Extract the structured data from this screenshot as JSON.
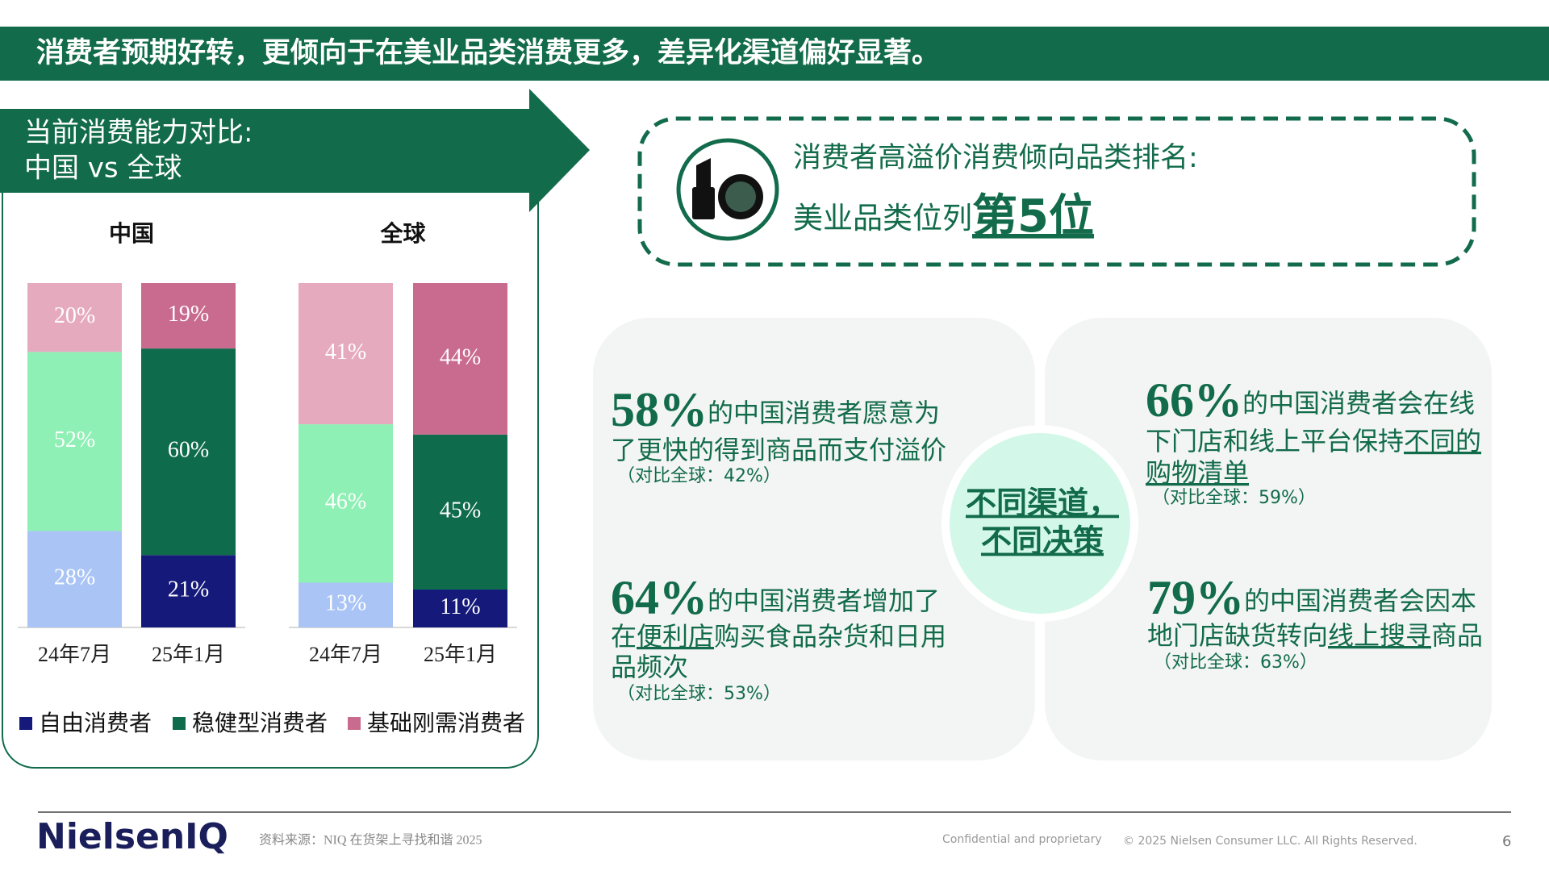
{
  "header": {
    "title": "消费者预期好转，更倾向于在美业品类消费更多，差异化渠道偏好显著。"
  },
  "panel": {
    "title_lines": [
      "当前消费能力对比:",
      "中国 vs 全球"
    ]
  },
  "chart_data": [
    {
      "type": "bar",
      "stacked": true,
      "title": "中国",
      "categories": [
        "24年7月",
        "25年1月"
      ],
      "ylim": [
        0,
        100
      ],
      "series": [
        {
          "name": "自由消费者",
          "colors": [
            "#a9c4f5",
            "#14197a"
          ],
          "values": [
            28,
            21
          ],
          "value_labels": [
            "28%",
            "21%"
          ]
        },
        {
          "name": "稳健型消费者",
          "colors": [
            "#8ef0b4",
            "#0e6b4c"
          ],
          "values": [
            52,
            60
          ],
          "value_labels": [
            "52%",
            "60%"
          ]
        },
        {
          "name": "基础刚需消费者",
          "colors": [
            "#e6aabf",
            "#c96b8f"
          ],
          "values": [
            20,
            19
          ],
          "value_labels": [
            "20%",
            "19%"
          ]
        }
      ]
    },
    {
      "type": "bar",
      "stacked": true,
      "title": "全球",
      "categories": [
        "24年7月",
        "25年1月"
      ],
      "ylim": [
        0,
        100
      ],
      "series": [
        {
          "name": "自由消费者",
          "colors": [
            "#a9c4f5",
            "#14197a"
          ],
          "values": [
            13,
            11
          ],
          "value_labels": [
            "13%",
            "11%"
          ]
        },
        {
          "name": "稳健型消费者",
          "colors": [
            "#8ef0b4",
            "#0e6b4c"
          ],
          "values": [
            46,
            45
          ],
          "value_labels": [
            "46%",
            "45%"
          ]
        },
        {
          "name": "基础刚需消费者",
          "colors": [
            "#e6aabf",
            "#c96b8f"
          ],
          "values": [
            41,
            44
          ],
          "value_labels": [
            "41%",
            "44%"
          ]
        }
      ]
    }
  ],
  "ranking": {
    "label": "消费者高溢价消费倾向品类排名:",
    "prefix": "美业品类位列",
    "rank": "第5位"
  },
  "center": {
    "lines": [
      "不同渠道，",
      "不同决策"
    ]
  },
  "stats": [
    {
      "value": "58%",
      "lines": [
        [
          "的中国消费者愿意为"
        ],
        [
          "了更快的得到商品而支付溢价"
        ]
      ],
      "note": "（对比全球：42%）"
    },
    {
      "value": "66%",
      "lines": [
        [
          "的中国消费者会在线"
        ],
        [
          "下门店和线上平台保持",
          {
            "text": "不同的",
            "underline": true
          }
        ],
        [
          {
            "text": "购物清单",
            "underline": true
          }
        ]
      ],
      "note": "（对比全球：59%）"
    },
    {
      "value": "64%",
      "lines": [
        [
          "的中国消费者增加了"
        ],
        [
          "在",
          {
            "text": "便利店",
            "underline": true
          },
          "购买食品杂货和日用"
        ],
        [
          "品频次"
        ]
      ],
      "note": "（对比全球：53%）"
    },
    {
      "value": "79%",
      "lines": [
        [
          "的中国消费者会因本"
        ],
        [
          "地门店缺货转向",
          {
            "text": "线上搜寻",
            "underline": true
          },
          "商品"
        ]
      ],
      "note": "（对比全球：63%）"
    }
  ],
  "footer": {
    "logo": "NielsenIQ",
    "source": "资料来源：NIQ 在货架上寻找和谐 2025",
    "confidential": "Confidential and proprietary",
    "copyright": "© 2025 Nielsen Consumer LLC. All Rights Reserved.",
    "page": "6"
  }
}
